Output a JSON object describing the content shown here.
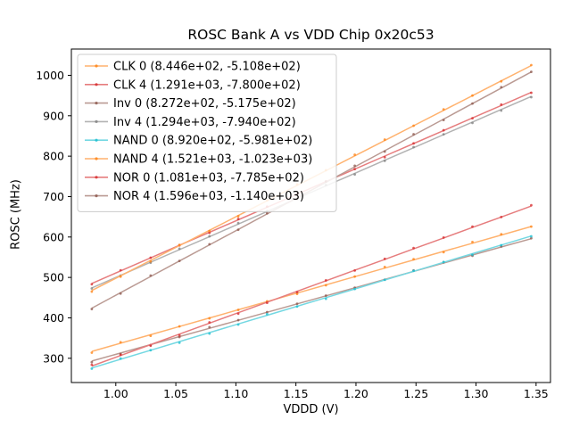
{
  "figure": {
    "title": "ROSC Bank A vs VDD Chip 0x20c53",
    "xlabel": "VDDD (V)",
    "ylabel": "ROSC (MHz)"
  },
  "chart_data": {
    "type": "scatter",
    "title": "ROSC Bank A vs VDD Chip 0x20c53",
    "xlabel": "VDDD (V)",
    "ylabel": "ROSC (MHz)",
    "xlim": [
      0.963,
      1.362
    ],
    "ylim": [
      240,
      1065
    ],
    "xticks": [
      1.0,
      1.05,
      1.1,
      1.15,
      1.2,
      1.25,
      1.3,
      1.35
    ],
    "yticks": [
      300,
      400,
      500,
      600,
      700,
      800,
      900,
      1000
    ],
    "grid": false,
    "legend_position": "upper left",
    "x": [
      0.98,
      1.004,
      1.029,
      1.053,
      1.078,
      1.102,
      1.126,
      1.151,
      1.175,
      1.199,
      1.224,
      1.248,
      1.273,
      1.297,
      1.321,
      1.346
    ],
    "fit_model": "y = slope * x + intercept",
    "series": [
      {
        "name": "CLK 0",
        "label": "CLK 0 (8.446e+02, -5.108e+02)",
        "slope": 844.6,
        "intercept": -510.8,
        "line_color": "#ffb26e",
        "marker_color": "#ff7f0e"
      },
      {
        "name": "CLK 4",
        "label": "CLK 4 (1.291e+03, -7.800e+02)",
        "slope": 1291.0,
        "intercept": -780.0,
        "line_color": "#e67d7e",
        "marker_color": "#d62728"
      },
      {
        "name": "Inv 0",
        "label": "Inv 0 (8.272e+02, -5.175e+02)",
        "slope": 827.2,
        "intercept": -517.5,
        "line_color": "#ba9a93",
        "marker_color": "#8c564b"
      },
      {
        "name": "Inv 4",
        "label": "Inv 4 (1.294e+03, -7.940e+02)",
        "slope": 1294.0,
        "intercept": -794.0,
        "line_color": "#b2b2b2",
        "marker_color": "#7f7f7f"
      },
      {
        "name": "NAND 0",
        "label": "NAND 0 (8.920e+02, -5.981e+02)",
        "slope": 892.0,
        "intercept": -598.1,
        "line_color": "#74d8e2",
        "marker_color": "#17becf"
      },
      {
        "name": "NAND 4",
        "label": "NAND 4 (1.521e+03, -1.023e+03)",
        "slope": 1521.0,
        "intercept": -1023.0,
        "line_color": "#ffb26e",
        "marker_color": "#ff7f0e"
      },
      {
        "name": "NOR 0",
        "label": "NOR 0 (1.081e+03, -7.785e+02)",
        "slope": 1081.0,
        "intercept": -778.5,
        "line_color": "#e67d7e",
        "marker_color": "#d62728"
      },
      {
        "name": "NOR 4",
        "label": "NOR 4 (1.596e+03, -1.140e+03)",
        "slope": 1596.0,
        "intercept": -1140.0,
        "line_color": "#ba9a93",
        "marker_color": "#8c564b"
      }
    ],
    "style": {
      "axis_color": "#000000",
      "legend_edge_color": "#cccccc",
      "legend_face_color": "#ffffff"
    }
  }
}
